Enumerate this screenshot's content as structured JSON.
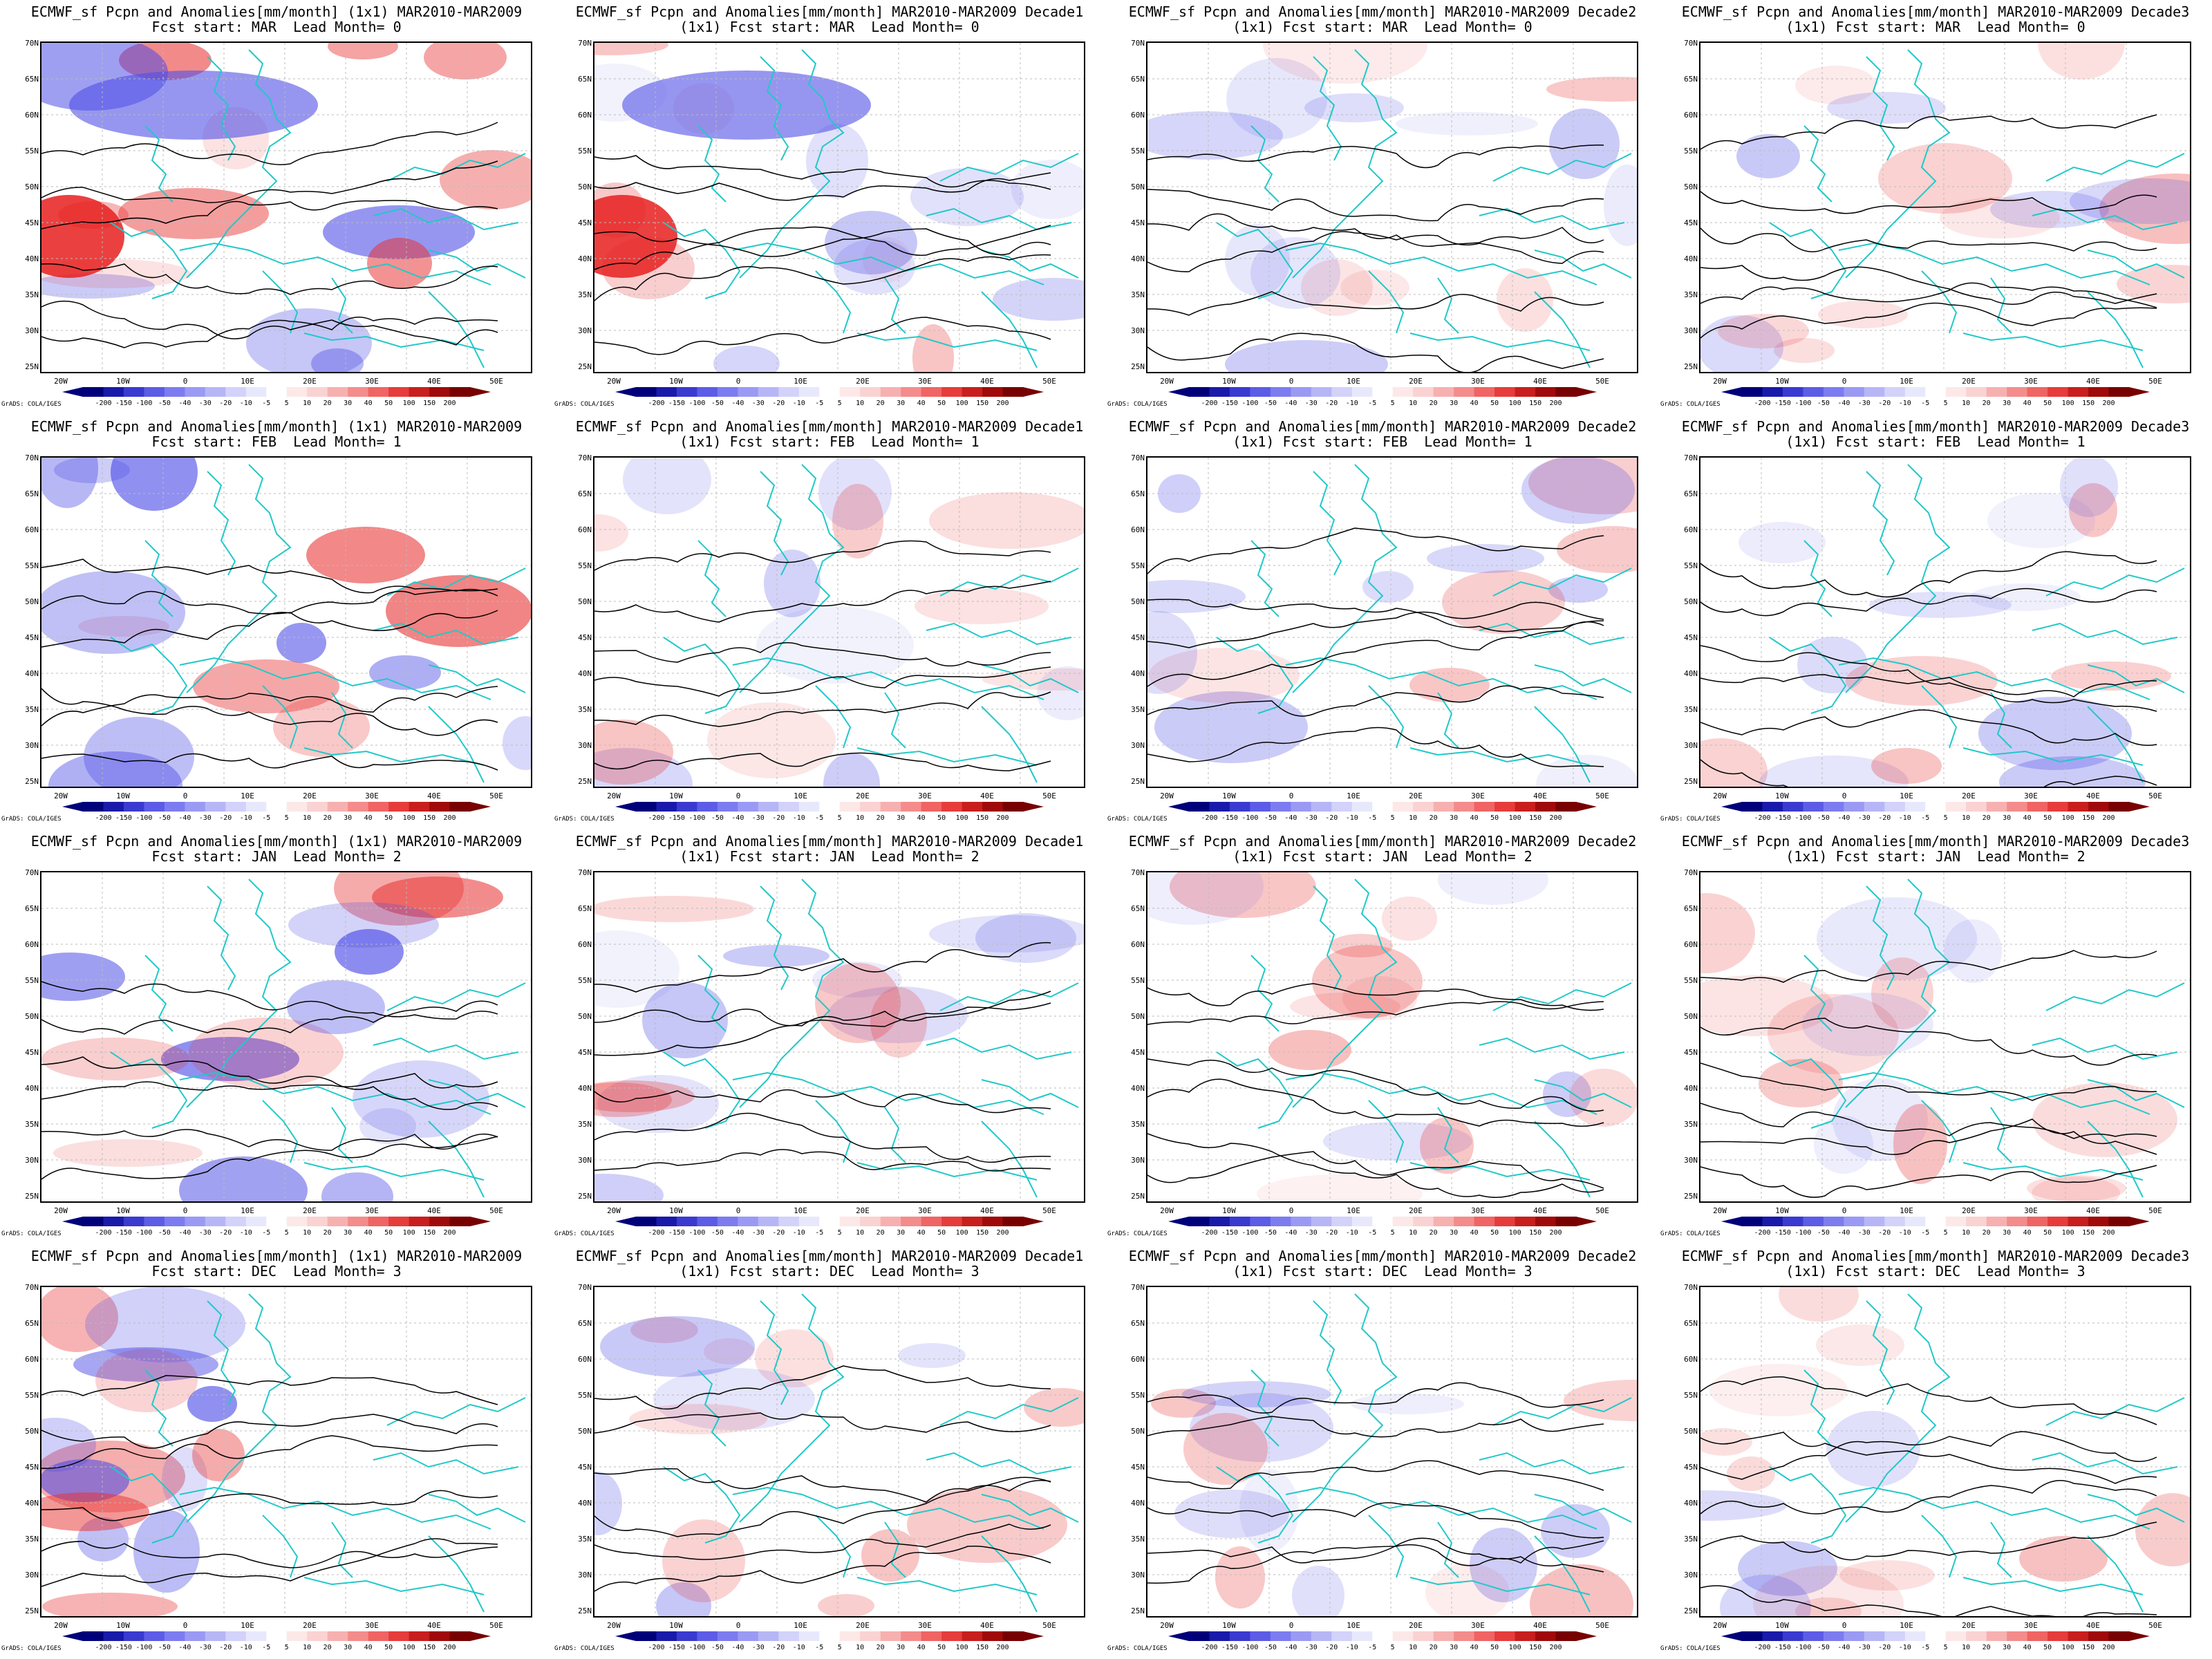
{
  "panels": [
    {
      "title1": "ECMWF_sf Pcpn and Anomalies[mm/month] (1x1) MAR2010-MAR2009",
      "title2": "Fcst start: MAR  Lead Month= 0"
    },
    {
      "title1": "ECMWF_sf Pcpn and Anomalies[mm/month] MAR2010-MAR2009 Decade1",
      "title2": "(1x1) Fcst start: MAR  Lead Month= 0"
    },
    {
      "title1": "ECMWF_sf Pcpn and Anomalies[mm/month] MAR2010-MAR2009 Decade2",
      "title2": "(1x1) Fcst start: MAR  Lead Month= 0"
    },
    {
      "title1": "ECMWF_sf Pcpn and Anomalies[mm/month] MAR2010-MAR2009 Decade3",
      "title2": "(1x1) Fcst start: MAR  Lead Month= 0"
    },
    {
      "title1": "ECMWF_sf Pcpn and Anomalies[mm/month] (1x1) MAR2010-MAR2009",
      "title2": "Fcst start: FEB  Lead Month= 1"
    },
    {
      "title1": "ECMWF_sf Pcpn and Anomalies[mm/month] MAR2010-MAR2009 Decade1",
      "title2": "(1x1) Fcst start: FEB  Lead Month= 1"
    },
    {
      "title1": "ECMWF_sf Pcpn and Anomalies[mm/month] MAR2010-MAR2009 Decade2",
      "title2": "(1x1) Fcst start: FEB  Lead Month= 1"
    },
    {
      "title1": "ECMWF_sf Pcpn and Anomalies[mm/month] MAR2010-MAR2009 Decade3",
      "title2": "(1x1) Fcst start: FEB  Lead Month= 1"
    },
    {
      "title1": "ECMWF_sf Pcpn and Anomalies[mm/month] (1x1) MAR2010-MAR2009",
      "title2": "Fcst start: JAN  Lead Month= 2"
    },
    {
      "title1": "ECMWF_sf Pcpn and Anomalies[mm/month] MAR2010-MAR2009 Decade1",
      "title2": "(1x1) Fcst start: JAN  Lead Month= 2"
    },
    {
      "title1": "ECMWF_sf Pcpn and Anomalies[mm/month] MAR2010-MAR2009 Decade2",
      "title2": "(1x1) Fcst start: JAN  Lead Month= 2"
    },
    {
      "title1": "ECMWF_sf Pcpn and Anomalies[mm/month] MAR2010-MAR2009 Decade3",
      "title2": "(1x1) Fcst start: JAN  Lead Month= 2"
    },
    {
      "title1": "ECMWF_sf Pcpn and Anomalies[mm/month] (1x1) MAR2010-MAR2009",
      "title2": "Fcst start: DEC  Lead Month= 3"
    },
    {
      "title1": "ECMWF_sf Pcpn and Anomalies[mm/month] MAR2010-MAR2009 Decade1",
      "title2": "(1x1) Fcst start: DEC  Lead Month= 3"
    },
    {
      "title1": "ECMWF_sf Pcpn and Anomalies[mm/month] MAR2010-MAR2009 Decade2",
      "title2": "(1x1) Fcst start: DEC  Lead Month= 3"
    },
    {
      "title1": "ECMWF_sf Pcpn and Anomalies[mm/month] MAR2010-MAR2009 Decade3",
      "title2": "(1x1) Fcst start: DEC  Lead Month= 3"
    }
  ],
  "lat_labels": [
    "70N",
    "65N",
    "60N",
    "55N",
    "50N",
    "45N",
    "40N",
    "35N",
    "30N",
    "25N"
  ],
  "lon_labels": [
    "20W",
    "10W",
    "0",
    "10E",
    "20E",
    "30E",
    "40E",
    "50E"
  ],
  "colorbar": {
    "labels": [
      "-200",
      "-150",
      "-100",
      "-50",
      "-40",
      "-30",
      "-20",
      "-10",
      "-5",
      "5",
      "10",
      "20",
      "30",
      "40",
      "50",
      "100",
      "150",
      "200"
    ],
    "colors": [
      "#00007a",
      "#1a1aaa",
      "#3a3ad0",
      "#5c5ce6",
      "#7c7cf0",
      "#9a9af4",
      "#b6b6f7",
      "#d2d2fa",
      "#e8e8fd",
      "#ffffff",
      "#fde8e8",
      "#fad2d2",
      "#f7b0b0",
      "#f48c8c",
      "#f06464",
      "#e63c3c",
      "#c81e1e",
      "#a00a0a",
      "#780000"
    ]
  },
  "credit": "GrADS: COLA/IGES",
  "colors": {
    "coast": "#22c8c8",
    "contour": "#000000"
  }
}
